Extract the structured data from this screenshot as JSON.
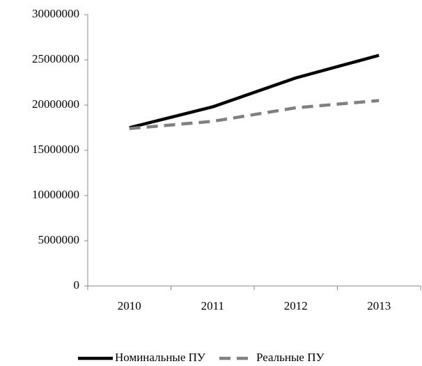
{
  "chart_data": {
    "type": "line",
    "categories": [
      "2010",
      "2011",
      "2012",
      "2013"
    ],
    "series": [
      {
        "name": "Номинальные ПУ",
        "color": "#000000",
        "dash": false,
        "values": [
          17500000,
          19800000,
          23000000,
          25500000
        ]
      },
      {
        "name": "Реальные ПУ",
        "color": "#808080",
        "dash": true,
        "values": [
          17400000,
          18200000,
          19700000,
          20500000
        ]
      }
    ],
    "ylim": [
      0,
      30000000
    ],
    "yticks": [
      0,
      5000000,
      10000000,
      15000000,
      20000000,
      25000000,
      30000000
    ],
    "grid": false,
    "legend": "bottom"
  }
}
